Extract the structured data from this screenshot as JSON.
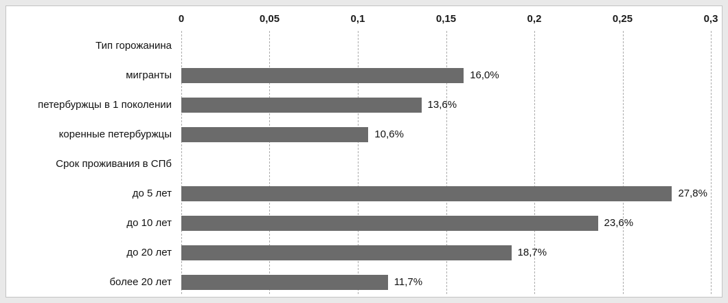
{
  "chart_data": {
    "type": "bar",
    "orientation": "horizontal",
    "title": "",
    "xlabel": "",
    "ylabel": "",
    "xlim": [
      0,
      0.3
    ],
    "grid": "dashed-vertical",
    "bar_color": "#6b6b6b",
    "x_ticks": [
      {
        "label": "0",
        "value": 0
      },
      {
        "label": "0,05",
        "value": 0.05
      },
      {
        "label": "0,1",
        "value": 0.1
      },
      {
        "label": "0,15",
        "value": 0.15
      },
      {
        "label": "0,2",
        "value": 0.2
      },
      {
        "label": "0,25",
        "value": 0.25
      },
      {
        "label": "0,3",
        "value": 0.3
      }
    ],
    "rows": [
      {
        "label": "Тип горожанина",
        "value": null,
        "display": "",
        "is_header": true
      },
      {
        "label": "мигранты",
        "value": 0.16,
        "display": "16,0%",
        "is_header": false
      },
      {
        "label": "петербуржцы в 1 поколении",
        "value": 0.136,
        "display": "13,6%",
        "is_header": false
      },
      {
        "label": "коренные петербуржцы",
        "value": 0.106,
        "display": "10,6%",
        "is_header": false
      },
      {
        "label": "Срок проживания в СПб",
        "value": null,
        "display": "",
        "is_header": true
      },
      {
        "label": "до 5 лет",
        "value": 0.278,
        "display": "27,8%",
        "is_header": false
      },
      {
        "label": "до 10 лет",
        "value": 0.236,
        "display": "23,6%",
        "is_header": false
      },
      {
        "label": "до 20 лет",
        "value": 0.187,
        "display": "18,7%",
        "is_header": false
      },
      {
        "label": "более 20 лет",
        "value": 0.117,
        "display": "11,7%",
        "is_header": false
      }
    ]
  }
}
